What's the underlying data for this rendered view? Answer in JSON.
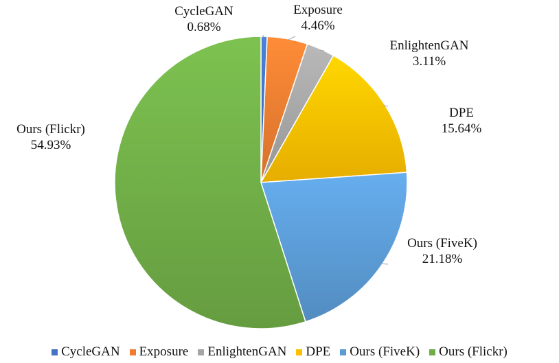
{
  "chart_data": {
    "type": "pie",
    "title": "",
    "slices": [
      {
        "name": "CycleGAN",
        "value": 0.68,
        "label": "0.68%",
        "color": "#4472C4"
      },
      {
        "name": "Exposure",
        "value": 4.46,
        "label": "4.46%",
        "color": "#ED7D31"
      },
      {
        "name": "EnlightenGAN",
        "value": 3.11,
        "label": "3.11%",
        "color": "#A5A5A5"
      },
      {
        "name": "DPE",
        "value": 15.64,
        "label": "15.64%",
        "color": "#FFC000"
      },
      {
        "name": "Ours (FiveK)",
        "value": 21.18,
        "label": "21.18%",
        "color": "#5B9BD5"
      },
      {
        "name": "Ours (Flickr)",
        "value": 54.93,
        "label": "54.93%",
        "color": "#70AD47"
      }
    ],
    "legend_position": "bottom"
  }
}
